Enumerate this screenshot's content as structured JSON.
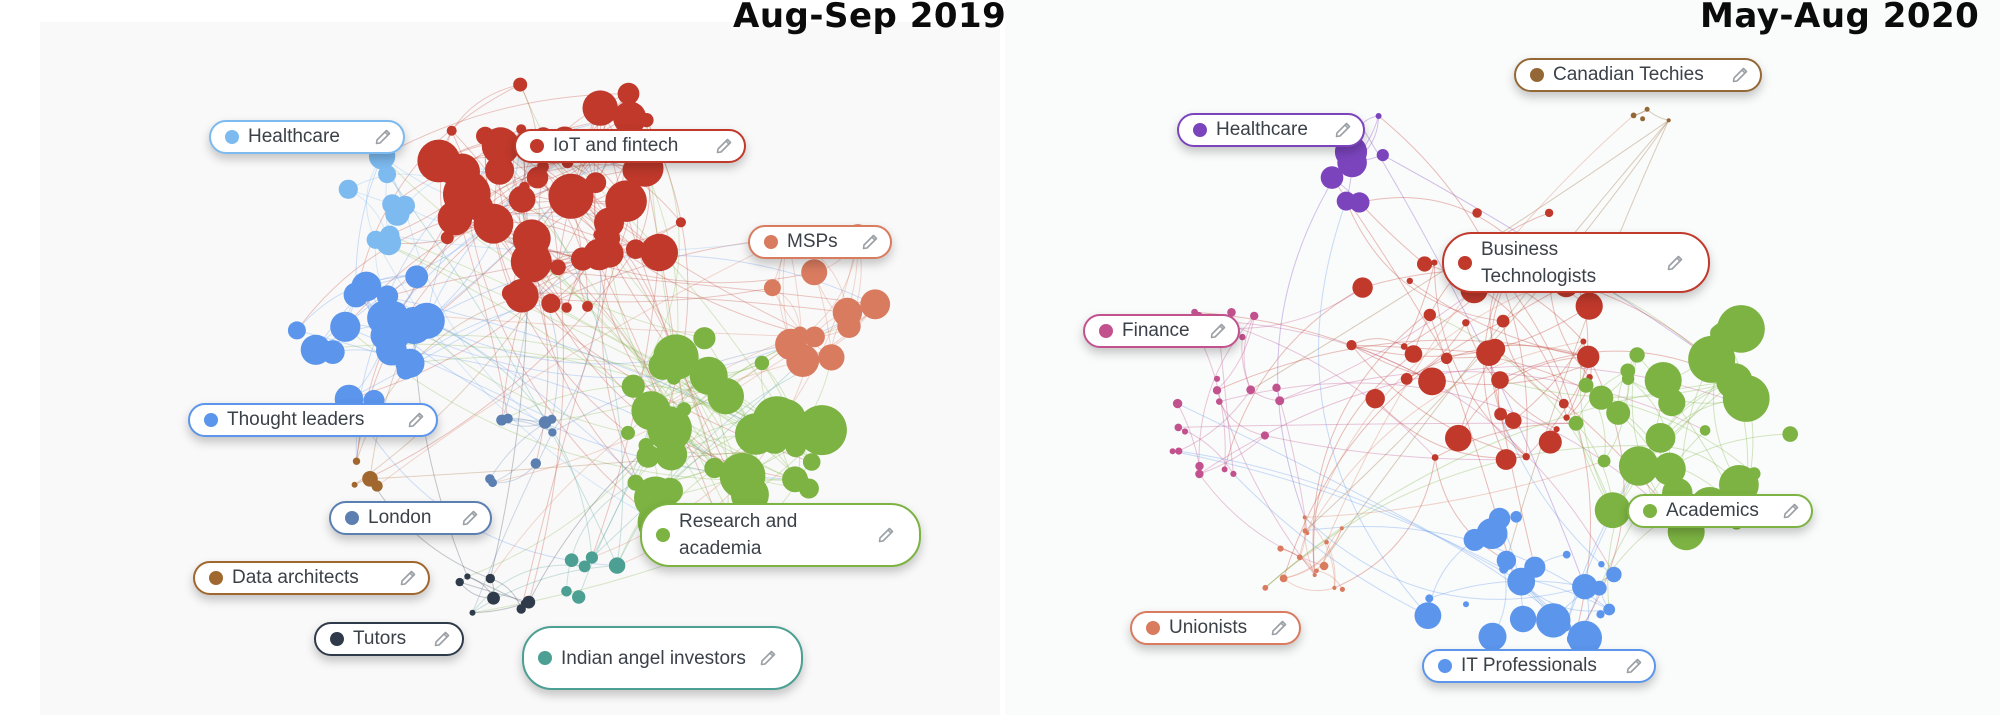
{
  "panels": {
    "left": {
      "title": "Aug-Sep 2019",
      "clusters": [
        {
          "id": "healthcare",
          "label": "Healthcare",
          "color": "#7cbaf0"
        },
        {
          "id": "iot",
          "label": "IoT and fintech",
          "color": "#c0392b"
        },
        {
          "id": "msps",
          "label": "MSPs",
          "color": "#d97b5f"
        },
        {
          "id": "thought",
          "label": "Thought leaders",
          "color": "#5b95ec"
        },
        {
          "id": "london",
          "label": "London",
          "color": "#5a7fb0"
        },
        {
          "id": "data",
          "label": "Data architects",
          "color": "#a0672e"
        },
        {
          "id": "tutors",
          "label": "Tutors",
          "color": "#2f3b4a"
        },
        {
          "id": "research",
          "label": "Research and academia",
          "color": "#7cb342"
        },
        {
          "id": "indian",
          "label": "Indian angel investors",
          "color": "#4c9f93"
        }
      ]
    },
    "right": {
      "title": "May-Aug 2020",
      "clusters": [
        {
          "id": "canadian",
          "label": "Canadian Techies",
          "color": "#946836"
        },
        {
          "id": "healthcare",
          "label": "Healthcare",
          "color": "#7b44bd"
        },
        {
          "id": "business",
          "label": "Business Technologists",
          "color": "#c0392b"
        },
        {
          "id": "finance",
          "label": "Finance",
          "color": "#c2528e"
        },
        {
          "id": "academics",
          "label": "Academics",
          "color": "#7cb342"
        },
        {
          "id": "unionists",
          "label": "Unionists",
          "color": "#d97b5f"
        },
        {
          "id": "it",
          "label": "IT Professionals",
          "color": "#5b95ec"
        }
      ]
    }
  },
  "icons": {
    "edit": "pencil-icon",
    "cluster": "dot"
  }
}
